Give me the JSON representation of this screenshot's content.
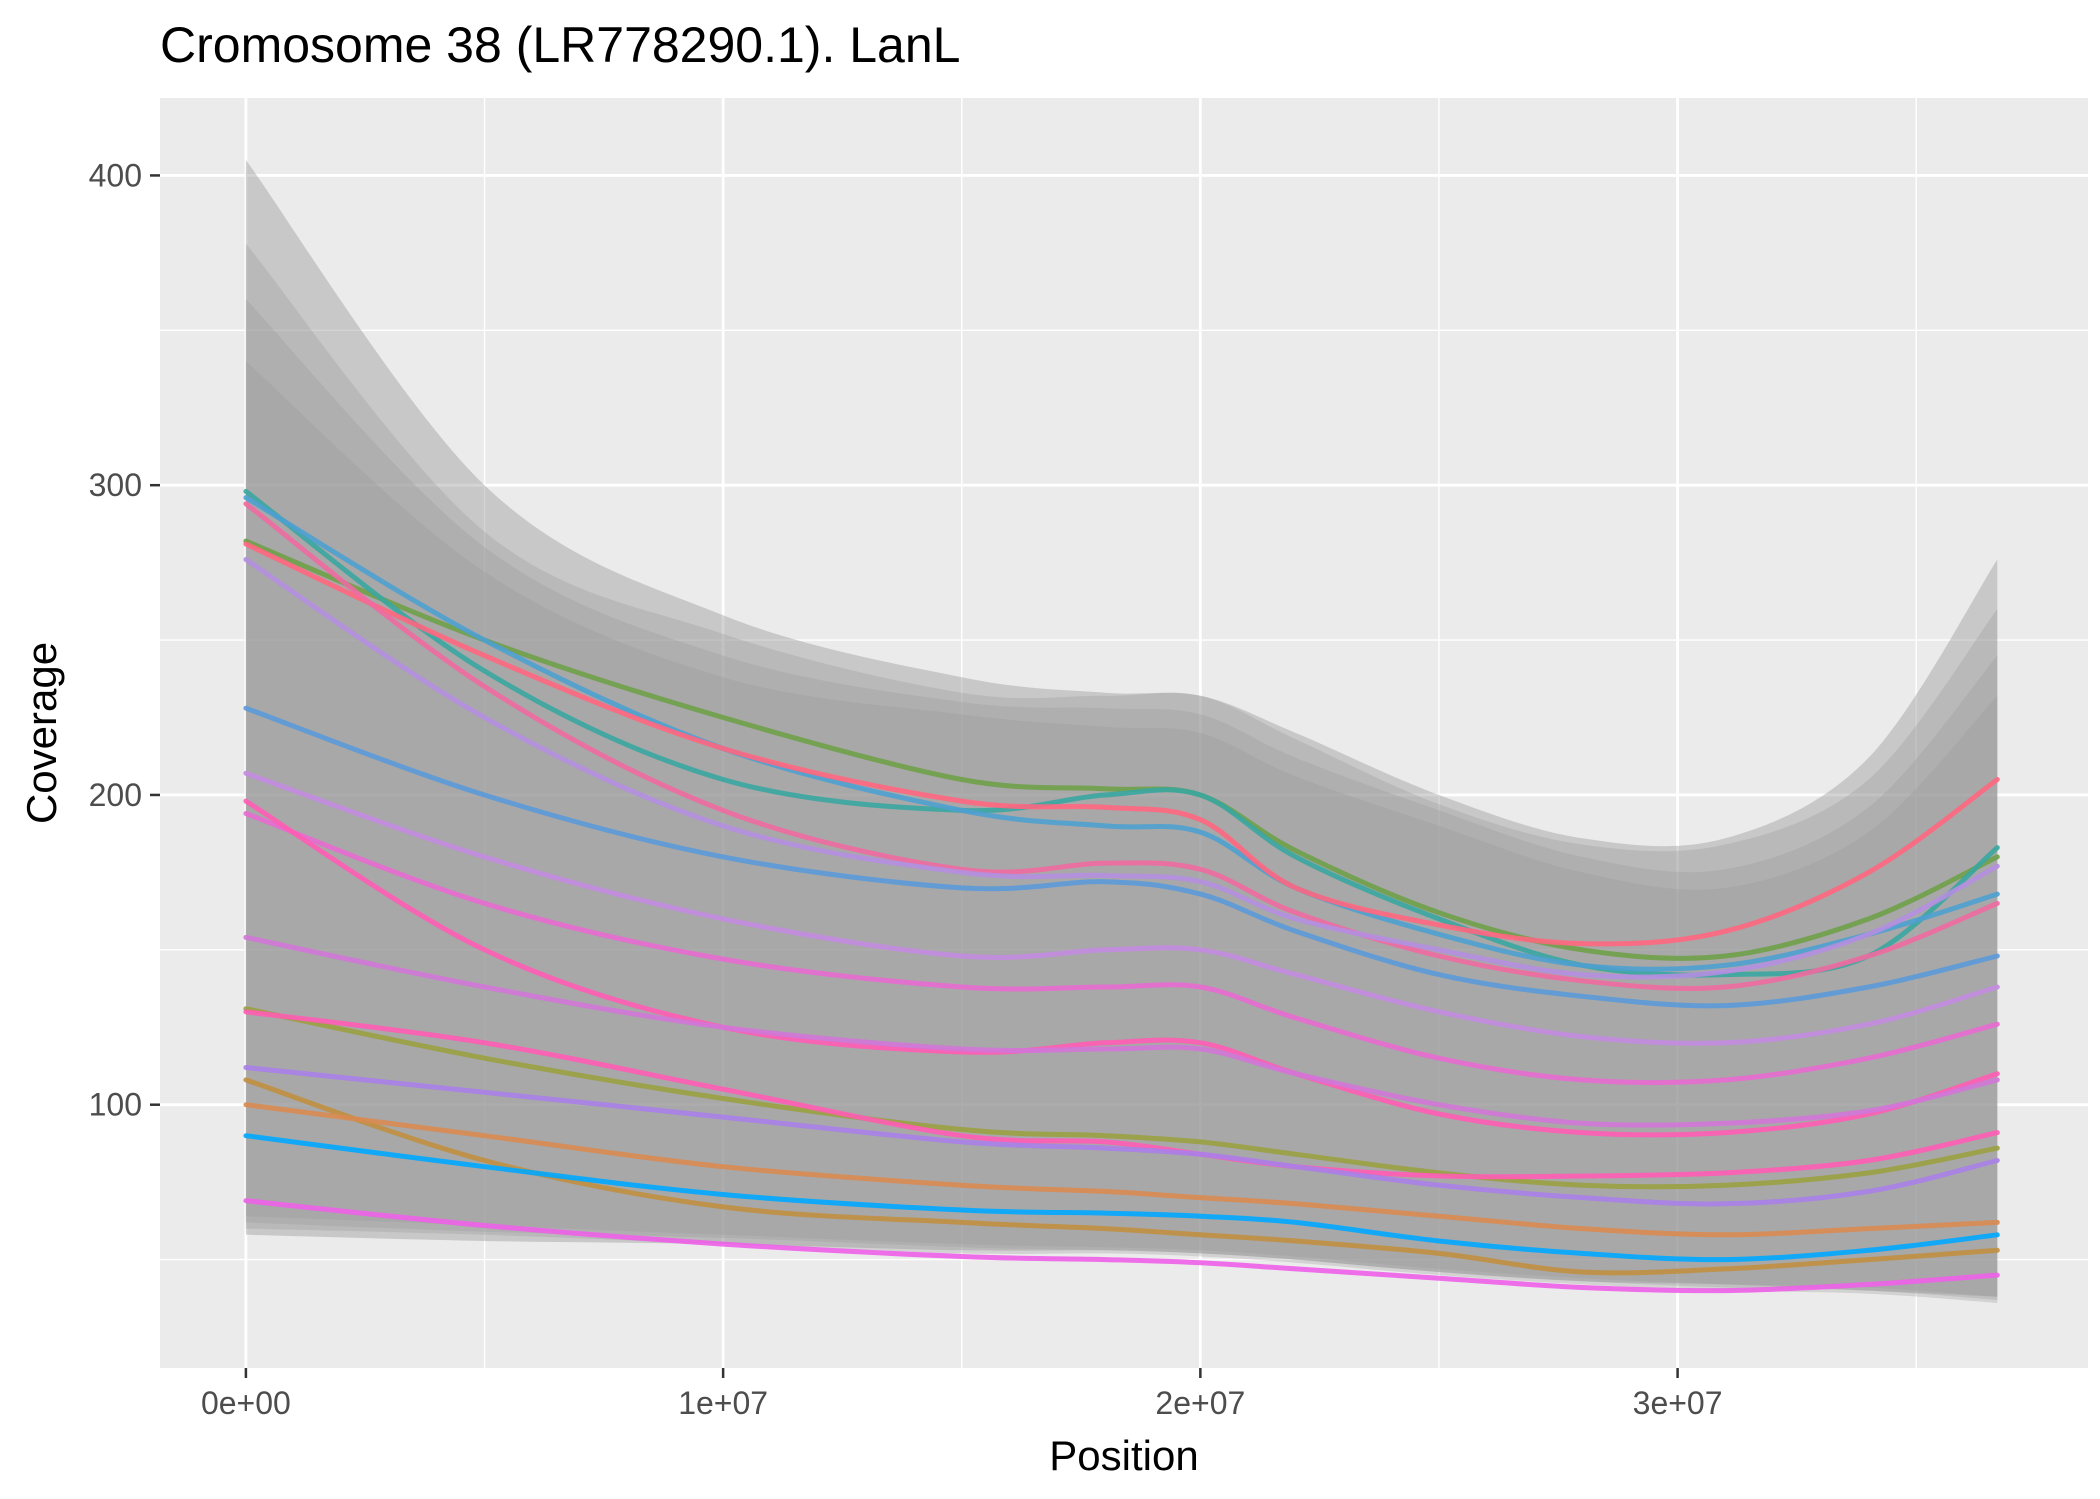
{
  "chart_data": {
    "type": "line",
    "title": "Cromosome 38 (LR778290.1). LanL",
    "xlabel": "Position",
    "ylabel": "Coverage",
    "xlim": [
      -1800000,
      38600000
    ],
    "ylim": [
      15,
      425
    ],
    "x_ticks": [
      0,
      10000000,
      20000000,
      30000000
    ],
    "x_tick_labels": [
      "0e+00",
      "1e+07",
      "2e+07",
      "3e+07"
    ],
    "y_ticks": [
      100,
      200,
      300,
      400
    ],
    "y_tick_labels": [
      "100",
      "200",
      "300",
      "400"
    ],
    "grid": true,
    "legend": "none",
    "background": "#ebebeb",
    "ribbon_color": "#999999",
    "x": [
      0,
      5000000,
      10000000,
      15000000,
      18000000,
      20000000,
      22000000,
      25000000,
      28000000,
      31000000,
      34000000,
      36700000
    ],
    "ribbons": [
      {
        "lower": [
          58,
          56,
          55,
          53,
          53,
          52,
          50,
          46,
          43,
          42,
          40,
          38
        ],
        "upper": [
          405,
          300,
          258,
          238,
          233,
          232,
          220,
          200,
          186,
          186,
          212,
          276
        ]
      },
      {
        "lower": [
          60,
          58,
          55,
          52,
          52,
          51,
          49,
          45,
          42,
          40,
          39,
          36
        ],
        "upper": [
          378,
          285,
          252,
          233,
          232,
          232,
          218,
          197,
          184,
          184,
          205,
          260
        ]
      },
      {
        "lower": [
          62,
          59,
          57,
          54,
          53,
          52,
          50,
          46,
          43,
          41,
          40,
          37
        ],
        "upper": [
          360,
          280,
          245,
          230,
          228,
          226,
          212,
          195,
          180,
          176,
          196,
          245
        ]
      },
      {
        "lower": [
          64,
          61,
          58,
          55,
          54,
          53,
          51,
          47,
          44,
          42,
          41,
          38
        ],
        "upper": [
          340,
          272,
          238,
          226,
          222,
          220,
          206,
          190,
          175,
          170,
          188,
          232
        ]
      }
    ],
    "series": [
      {
        "color": "#6fa048",
        "values": [
          282,
          250,
          225,
          205,
          202,
          200,
          182,
          162,
          150,
          148,
          160,
          180
        ]
      },
      {
        "color": "#3aa6a0",
        "values": [
          298,
          240,
          205,
          195,
          200,
          200,
          180,
          160,
          145,
          142,
          148,
          183
        ]
      },
      {
        "color": "#4ea0d0",
        "values": [
          296,
          250,
          215,
          195,
          190,
          188,
          170,
          155,
          145,
          145,
          155,
          168
        ]
      },
      {
        "color": "#ff6680",
        "values": [
          281,
          245,
          215,
          198,
          196,
          192,
          170,
          158,
          152,
          156,
          175,
          205
        ]
      },
      {
        "color": "#f06aa0",
        "values": [
          294,
          235,
          195,
          176,
          178,
          176,
          162,
          148,
          140,
          138,
          148,
          165
        ]
      },
      {
        "color": "#b48ee0",
        "values": [
          276,
          225,
          190,
          175,
          174,
          172,
          160,
          150,
          142,
          143,
          155,
          177
        ]
      },
      {
        "color": "#5b9ad8",
        "values": [
          228,
          200,
          180,
          170,
          172,
          168,
          156,
          142,
          135,
          132,
          138,
          148
        ]
      },
      {
        "color": "#c38be0",
        "values": [
          207,
          180,
          160,
          148,
          150,
          150,
          142,
          130,
          122,
          120,
          126,
          138
        ]
      },
      {
        "color": "#e86ad0",
        "values": [
          194,
          165,
          147,
          138,
          138,
          138,
          128,
          115,
          108,
          108,
          115,
          126
        ]
      },
      {
        "color": "#ff5cb4",
        "values": [
          198,
          150,
          125,
          117,
          120,
          120,
          110,
          97,
          91,
          91,
          97,
          110
        ]
      },
      {
        "color": "#d276d8",
        "values": [
          154,
          138,
          125,
          118,
          118,
          118,
          110,
          100,
          94,
          94,
          98,
          108
        ]
      },
      {
        "color": "#9aa040",
        "values": [
          131,
          115,
          102,
          92,
          90,
          88,
          84,
          78,
          74,
          74,
          78,
          86
        ]
      },
      {
        "color": "#ff5cb4",
        "values": [
          130,
          120,
          105,
          90,
          88,
          84,
          80,
          77,
          77,
          78,
          82,
          91
        ]
      },
      {
        "color": "#a880e8",
        "values": [
          112,
          104,
          96,
          88,
          86,
          84,
          80,
          74,
          70,
          68,
          72,
          82
        ]
      },
      {
        "color": "#c08f40",
        "values": [
          108,
          82,
          67,
          62,
          60,
          58,
          56,
          52,
          46,
          47,
          50,
          53
        ]
      },
      {
        "color": "#d98a50",
        "values": [
          100,
          90,
          80,
          74,
          72,
          70,
          68,
          64,
          60,
          58,
          60,
          62
        ]
      },
      {
        "color": "#00a9ff",
        "values": [
          90,
          80,
          71,
          66,
          65,
          64,
          62,
          56,
          52,
          50,
          53,
          58
        ]
      },
      {
        "color": "#ee5fe8",
        "values": [
          69,
          61,
          55,
          51,
          50,
          49,
          47,
          44,
          41,
          40,
          42,
          45
        ]
      }
    ]
  }
}
